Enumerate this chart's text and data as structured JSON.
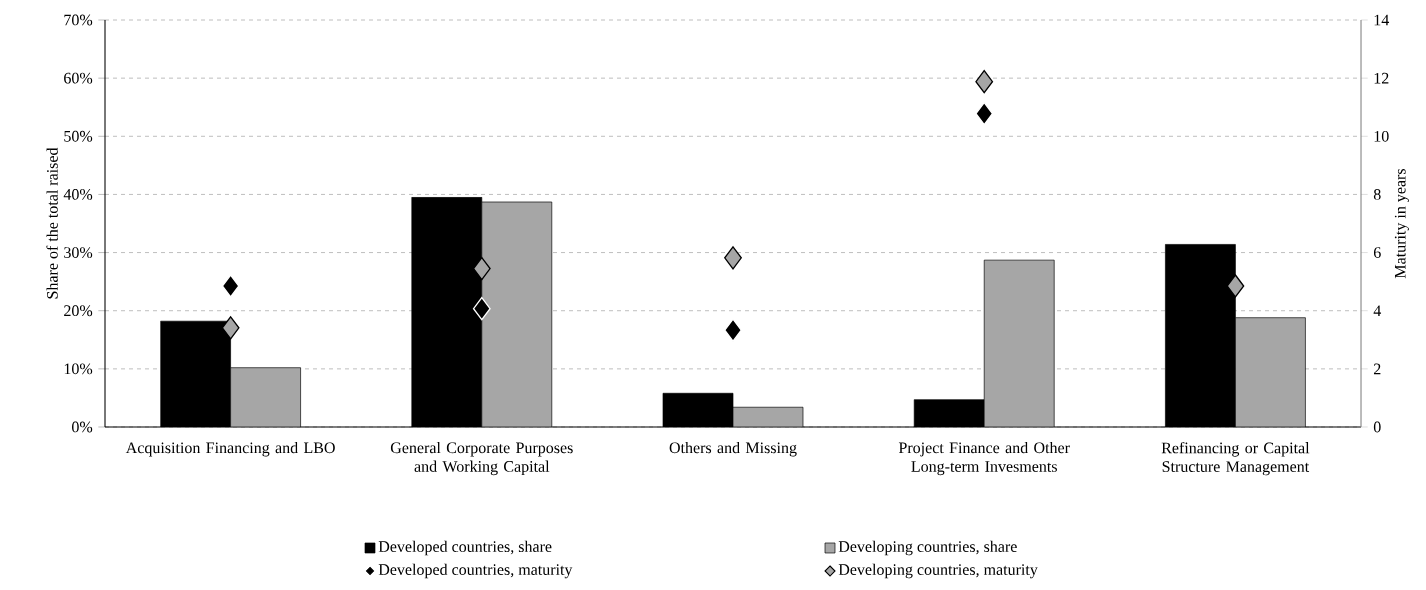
{
  "chart_data": {
    "type": "bar",
    "categories": [
      "Acquisition Financing and LBO",
      "General Corporate Purposes and Working Capital",
      "Others and Missing",
      "Project Finance and Other Long-term Invesments",
      "Refinancing or Capital Structure Management"
    ],
    "ylabel": "Share of the total raised",
    "y2label": "Maturity in years",
    "ylim": [
      0,
      70
    ],
    "yticks": [
      {
        "value": 0,
        "label": "0%"
      },
      {
        "value": 10,
        "label": "10%"
      },
      {
        "value": 20,
        "label": "20%"
      },
      {
        "value": 30,
        "label": "30%"
      },
      {
        "value": 40,
        "label": "40%"
      },
      {
        "value": 50,
        "label": "50%"
      },
      {
        "value": 60,
        "label": "60%"
      },
      {
        "value": 70,
        "label": "70%"
      }
    ],
    "y2lim": [
      0,
      14
    ],
    "y2ticks": [
      0,
      2,
      4,
      6,
      8,
      10,
      12,
      14
    ],
    "grid": "y",
    "legend": "bottom",
    "series": [
      {
        "name": "Developed countries, share",
        "color": "#000000",
        "values": [
          18.2,
          39.5,
          5.8,
          4.7,
          31.4
        ]
      },
      {
        "name": "Developing countries, share",
        "color": "#a6a6a6",
        "values": [
          10.2,
          38.7,
          3.4,
          28.7,
          18.8
        ]
      },
      {
        "name": "Developed countries, maturity",
        "type": "scatter",
        "axis": "y2",
        "marker": "diamond",
        "color": "#000000",
        "values": [
          4.85,
          4.07,
          3.33,
          10.78,
          null
        ]
      },
      {
        "name": "Developing countries, maturity",
        "type": "scatter",
        "axis": "y2",
        "marker": "diamond",
        "color": "#a6a6a6",
        "values": [
          3.41,
          5.45,
          5.82,
          11.88,
          4.85
        ]
      }
    ]
  }
}
